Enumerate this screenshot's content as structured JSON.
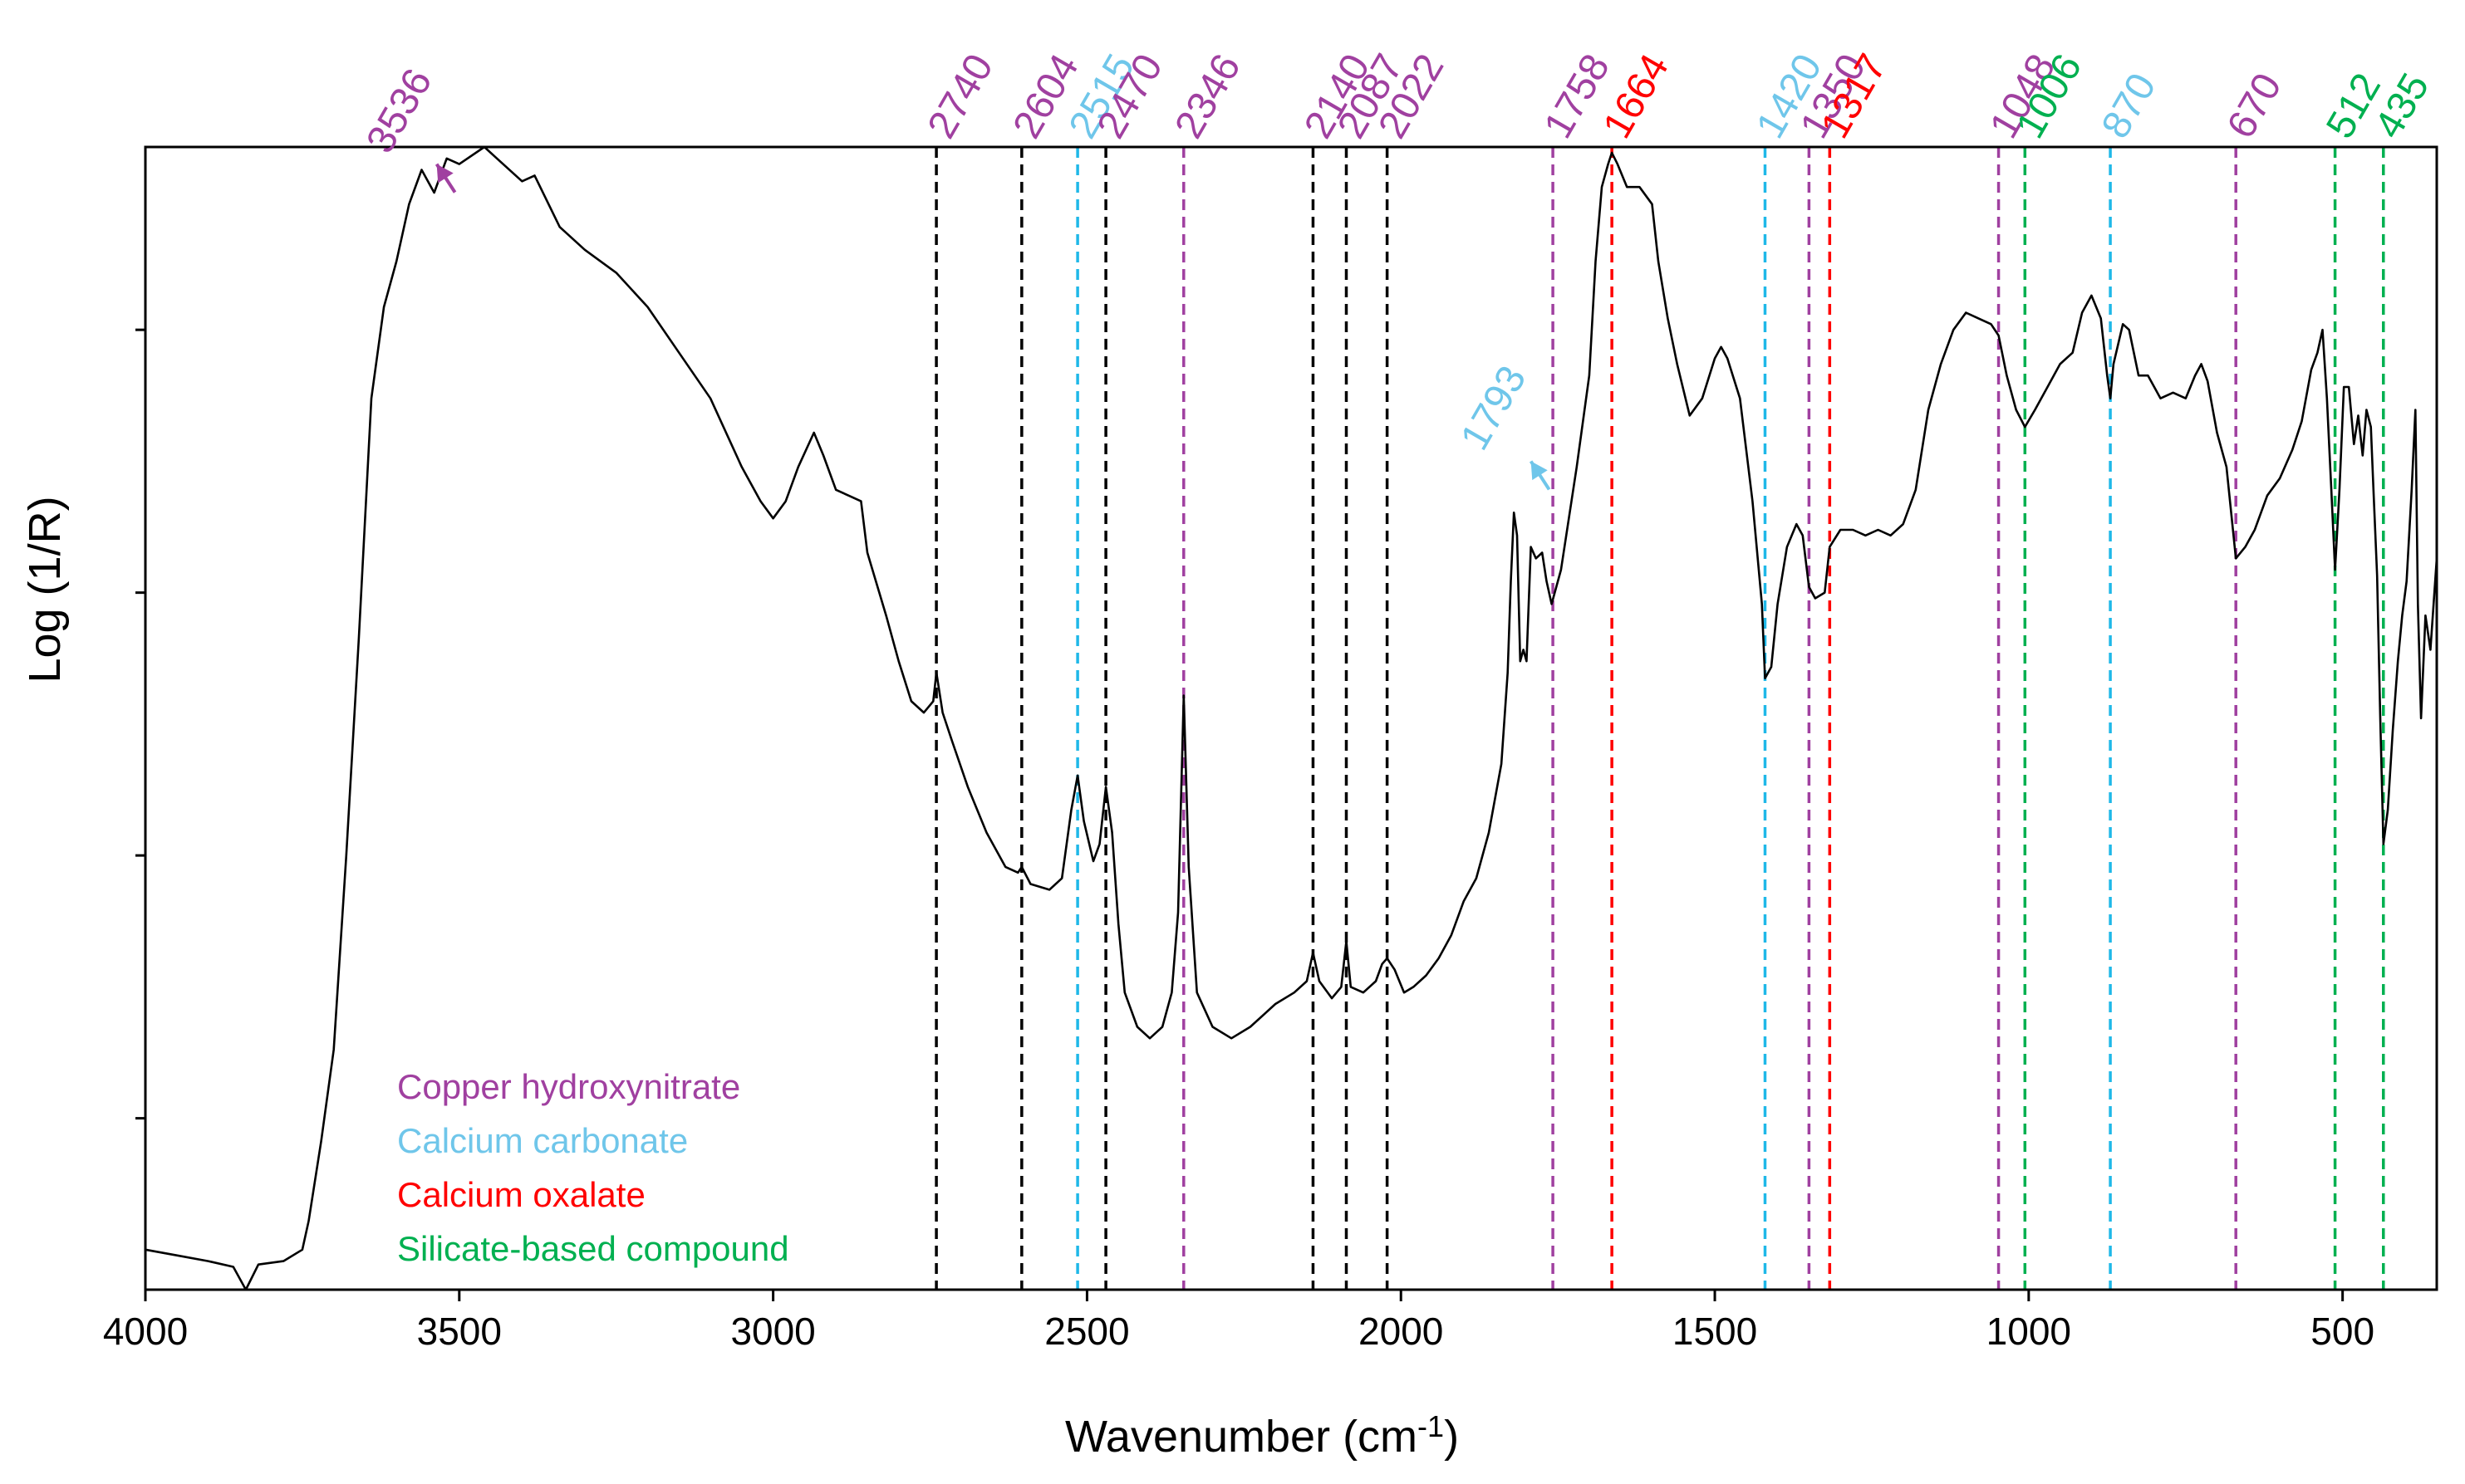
{
  "chart_data": {
    "type": "line",
    "xlabel": "Wavenumber (cm",
    "xlabel_superscript": "-1",
    "xlabel_close": ")",
    "ylabel": "Log (1/R)",
    "xlim": [
      4000,
      350
    ],
    "x_reversed": true,
    "ylim": [
      0,
      1
    ],
    "x_ticks": [
      4000,
      3500,
      3000,
      2500,
      2000,
      1500,
      1000,
      500
    ],
    "y_ticks_unlabeled": [
      0.15,
      0.38,
      0.61,
      0.84
    ],
    "colors": {
      "copper": "#A040A0",
      "carbonate": "#6FC6EA",
      "carbonate_line": "#1FB8E8",
      "oxalate": "#FF0000",
      "silicate": "#00B050",
      "unassigned": "#000000",
      "spectrum": "#000000"
    },
    "legend": [
      {
        "label": "Copper hydroxynitrate",
        "color": "#A040A0"
      },
      {
        "label": "Calcium carbonate",
        "color": "#6FC6EA"
      },
      {
        "label": "Calcium oxalate",
        "color": "#FF0000"
      },
      {
        "label": "Silicate-based compound",
        "color": "#00B050"
      }
    ],
    "markers": [
      {
        "wn": 2740,
        "label": "2740",
        "group": "copper",
        "line": "unassigned"
      },
      {
        "wn": 2604,
        "label": "2604",
        "group": "copper",
        "line": "unassigned"
      },
      {
        "wn": 2515,
        "label": "2515",
        "group": "carbonate",
        "line": "carbonate_line"
      },
      {
        "wn": 2470,
        "label": "2470",
        "group": "copper",
        "line": "unassigned"
      },
      {
        "wn": 2346,
        "label": "2346",
        "group": "copper",
        "line": "copper"
      },
      {
        "wn": 2140,
        "label": "2140",
        "group": "copper",
        "line": "unassigned"
      },
      {
        "wn": 2087,
        "label": "2087",
        "group": "copper",
        "line": "unassigned"
      },
      {
        "wn": 2022,
        "label": "2022",
        "group": "copper",
        "line": "unassigned"
      },
      {
        "wn": 1758,
        "label": "1758",
        "group": "copper",
        "line": "copper"
      },
      {
        "wn": 1664,
        "label": "1664",
        "group": "oxalate",
        "line": "oxalate"
      },
      {
        "wn": 1420,
        "label": "1420",
        "group": "carbonate",
        "line": "carbonate_line"
      },
      {
        "wn": 1350,
        "label": "1350",
        "group": "copper",
        "line": "copper"
      },
      {
        "wn": 1317,
        "label": "1317",
        "group": "oxalate",
        "line": "oxalate"
      },
      {
        "wn": 1048,
        "label": "1048",
        "group": "copper",
        "line": "copper"
      },
      {
        "wn": 1006,
        "label": "1006",
        "group": "silicate",
        "line": "silicate"
      },
      {
        "wn": 870,
        "label": "870",
        "group": "carbonate",
        "line": "carbonate_line"
      },
      {
        "wn": 670,
        "label": "670",
        "group": "copper",
        "line": "copper"
      },
      {
        "wn": 512,
        "label": "512",
        "group": "silicate",
        "line": "silicate"
      },
      {
        "wn": 435,
        "label": "435",
        "group": "silicate",
        "line": "silicate"
      }
    ],
    "arrow_annotations": [
      {
        "label": "3536",
        "group": "copper",
        "wn": 3536,
        "y": 0.985
      },
      {
        "label": "1793",
        "group": "carbonate",
        "wn": 1793,
        "y": 0.725
      }
    ],
    "series": [
      {
        "name": "spectrum",
        "points": [
          [
            4000,
            0.035
          ],
          [
            3950,
            0.03
          ],
          [
            3900,
            0.025
          ],
          [
            3860,
            0.02
          ],
          [
            3840,
            0.0
          ],
          [
            3820,
            0.022
          ],
          [
            3780,
            0.025
          ],
          [
            3750,
            0.035
          ],
          [
            3740,
            0.06
          ],
          [
            3720,
            0.13
          ],
          [
            3700,
            0.21
          ],
          [
            3680,
            0.38
          ],
          [
            3660,
            0.57
          ],
          [
            3640,
            0.78
          ],
          [
            3620,
            0.86
          ],
          [
            3600,
            0.9
          ],
          [
            3580,
            0.95
          ],
          [
            3560,
            0.98
          ],
          [
            3540,
            0.96
          ],
          [
            3520,
            0.99
          ],
          [
            3500,
            0.985
          ],
          [
            3460,
            1.0
          ],
          [
            3440,
            0.99
          ],
          [
            3400,
            0.97
          ],
          [
            3380,
            0.975
          ],
          [
            3340,
            0.93
          ],
          [
            3300,
            0.91
          ],
          [
            3250,
            0.89
          ],
          [
            3200,
            0.86
          ],
          [
            3150,
            0.82
          ],
          [
            3100,
            0.78
          ],
          [
            3050,
            0.72
          ],
          [
            3020,
            0.69
          ],
          [
            3000,
            0.675
          ],
          [
            2980,
            0.69
          ],
          [
            2960,
            0.72
          ],
          [
            2935,
            0.75
          ],
          [
            2920,
            0.73
          ],
          [
            2900,
            0.7
          ],
          [
            2880,
            0.695
          ],
          [
            2860,
            0.69
          ],
          [
            2850,
            0.645
          ],
          [
            2820,
            0.59
          ],
          [
            2800,
            0.55
          ],
          [
            2780,
            0.515
          ],
          [
            2760,
            0.505
          ],
          [
            2745,
            0.515
          ],
          [
            2740,
            0.54
          ],
          [
            2730,
            0.505
          ],
          [
            2715,
            0.48
          ],
          [
            2690,
            0.44
          ],
          [
            2660,
            0.4
          ],
          [
            2630,
            0.37
          ],
          [
            2610,
            0.365
          ],
          [
            2604,
            0.37
          ],
          [
            2590,
            0.355
          ],
          [
            2560,
            0.35
          ],
          [
            2540,
            0.36
          ],
          [
            2525,
            0.42
          ],
          [
            2515,
            0.45
          ],
          [
            2505,
            0.41
          ],
          [
            2490,
            0.375
          ],
          [
            2480,
            0.39
          ],
          [
            2470,
            0.44
          ],
          [
            2460,
            0.4
          ],
          [
            2450,
            0.32
          ],
          [
            2440,
            0.26
          ],
          [
            2420,
            0.23
          ],
          [
            2400,
            0.22
          ],
          [
            2380,
            0.23
          ],
          [
            2365,
            0.26
          ],
          [
            2355,
            0.33
          ],
          [
            2346,
            0.52
          ],
          [
            2338,
            0.37
          ],
          [
            2325,
            0.26
          ],
          [
            2300,
            0.23
          ],
          [
            2270,
            0.22
          ],
          [
            2240,
            0.23
          ],
          [
            2200,
            0.25
          ],
          [
            2170,
            0.26
          ],
          [
            2150,
            0.27
          ],
          [
            2140,
            0.295
          ],
          [
            2130,
            0.27
          ],
          [
            2110,
            0.255
          ],
          [
            2095,
            0.265
          ],
          [
            2087,
            0.305
          ],
          [
            2080,
            0.265
          ],
          [
            2060,
            0.26
          ],
          [
            2040,
            0.27
          ],
          [
            2030,
            0.285
          ],
          [
            2022,
            0.29
          ],
          [
            2010,
            0.28
          ],
          [
            1995,
            0.26
          ],
          [
            1980,
            0.265
          ],
          [
            1960,
            0.275
          ],
          [
            1940,
            0.29
          ],
          [
            1920,
            0.31
          ],
          [
            1900,
            0.34
          ],
          [
            1880,
            0.36
          ],
          [
            1860,
            0.4
          ],
          [
            1840,
            0.46
          ],
          [
            1830,
            0.54
          ],
          [
            1825,
            0.62
          ],
          [
            1820,
            0.68
          ],
          [
            1815,
            0.66
          ],
          [
            1810,
            0.55
          ],
          [
            1805,
            0.56
          ],
          [
            1800,
            0.55
          ],
          [
            1793,
            0.65
          ],
          [
            1785,
            0.64
          ],
          [
            1775,
            0.645
          ],
          [
            1768,
            0.62
          ],
          [
            1760,
            0.6
          ],
          [
            1745,
            0.63
          ],
          [
            1720,
            0.72
          ],
          [
            1700,
            0.8
          ],
          [
            1690,
            0.9
          ],
          [
            1680,
            0.965
          ],
          [
            1670,
            0.985
          ],
          [
            1664,
            0.995
          ],
          [
            1655,
            0.985
          ],
          [
            1640,
            0.965
          ],
          [
            1620,
            0.965
          ],
          [
            1600,
            0.95
          ],
          [
            1590,
            0.9
          ],
          [
            1575,
            0.85
          ],
          [
            1560,
            0.81
          ],
          [
            1540,
            0.765
          ],
          [
            1520,
            0.78
          ],
          [
            1500,
            0.815
          ],
          [
            1490,
            0.825
          ],
          [
            1480,
            0.815
          ],
          [
            1460,
            0.78
          ],
          [
            1440,
            0.69
          ],
          [
            1425,
            0.6
          ],
          [
            1420,
            0.535
          ],
          [
            1410,
            0.545
          ],
          [
            1400,
            0.6
          ],
          [
            1385,
            0.65
          ],
          [
            1370,
            0.67
          ],
          [
            1360,
            0.66
          ],
          [
            1350,
            0.615
          ],
          [
            1340,
            0.605
          ],
          [
            1325,
            0.61
          ],
          [
            1317,
            0.65
          ],
          [
            1300,
            0.665
          ],
          [
            1280,
            0.665
          ],
          [
            1260,
            0.66
          ],
          [
            1240,
            0.665
          ],
          [
            1220,
            0.66
          ],
          [
            1200,
            0.67
          ],
          [
            1180,
            0.7
          ],
          [
            1160,
            0.77
          ],
          [
            1140,
            0.81
          ],
          [
            1120,
            0.84
          ],
          [
            1100,
            0.855
          ],
          [
            1080,
            0.85
          ],
          [
            1060,
            0.845
          ],
          [
            1048,
            0.835
          ],
          [
            1035,
            0.8
          ],
          [
            1020,
            0.77
          ],
          [
            1006,
            0.755
          ],
          [
            990,
            0.77
          ],
          [
            970,
            0.79
          ],
          [
            950,
            0.81
          ],
          [
            930,
            0.82
          ],
          [
            915,
            0.855
          ],
          [
            900,
            0.87
          ],
          [
            885,
            0.85
          ],
          [
            875,
            0.8
          ],
          [
            870,
            0.78
          ],
          [
            865,
            0.81
          ],
          [
            850,
            0.845
          ],
          [
            840,
            0.84
          ],
          [
            825,
            0.8
          ],
          [
            810,
            0.8
          ],
          [
            790,
            0.78
          ],
          [
            770,
            0.785
          ],
          [
            750,
            0.78
          ],
          [
            735,
            0.8
          ],
          [
            725,
            0.81
          ],
          [
            715,
            0.795
          ],
          [
            700,
            0.75
          ],
          [
            685,
            0.72
          ],
          [
            670,
            0.64
          ],
          [
            655,
            0.65
          ],
          [
            640,
            0.665
          ],
          [
            620,
            0.695
          ],
          [
            600,
            0.71
          ],
          [
            580,
            0.735
          ],
          [
            565,
            0.76
          ],
          [
            550,
            0.805
          ],
          [
            540,
            0.82
          ],
          [
            532,
            0.84
          ],
          [
            525,
            0.78
          ],
          [
            518,
            0.7
          ],
          [
            512,
            0.63
          ],
          [
            505,
            0.7
          ],
          [
            498,
            0.79
          ],
          [
            490,
            0.79
          ],
          [
            482,
            0.74
          ],
          [
            475,
            0.765
          ],
          [
            468,
            0.73
          ],
          [
            462,
            0.77
          ],
          [
            455,
            0.755
          ],
          [
            450,
            0.69
          ],
          [
            445,
            0.625
          ],
          [
            440,
            0.5
          ],
          [
            435,
            0.39
          ],
          [
            428,
            0.42
          ],
          [
            420,
            0.49
          ],
          [
            412,
            0.55
          ],
          [
            405,
            0.59
          ],
          [
            398,
            0.62
          ],
          [
            390,
            0.7
          ],
          [
            384,
            0.77
          ],
          [
            380,
            0.6
          ],
          [
            375,
            0.5
          ],
          [
            368,
            0.59
          ],
          [
            360,
            0.56
          ],
          [
            355,
            0.6
          ],
          [
            350,
            0.64
          ]
        ]
      }
    ]
  }
}
